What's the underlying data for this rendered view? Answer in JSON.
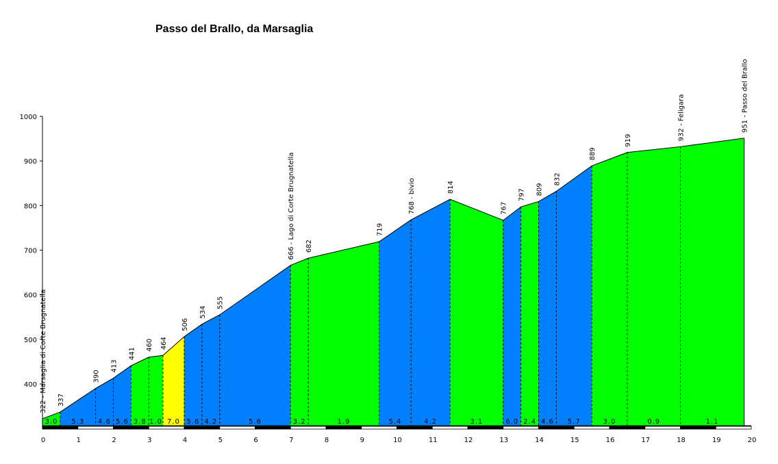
{
  "chart_data": {
    "type": "area",
    "title": "Passo del Brallo, da Marsaglia",
    "xlabel": "",
    "ylabel": "",
    "xlim": [
      0,
      20
    ],
    "ylim": [
      300,
      1000
    ],
    "x_ticks": [
      "0",
      "1",
      "2",
      "3",
      "4",
      "5",
      "6",
      "7",
      "8",
      "9",
      "10",
      "11",
      "12",
      "13",
      "14",
      "15",
      "16",
      "17",
      "18",
      "19",
      "20"
    ],
    "y_ticks": [
      "400",
      "500",
      "600",
      "700",
      "800",
      "900",
      "1000"
    ],
    "points": [
      {
        "x": 0,
        "y": 322,
        "label": "322 - Marsaglia di Corte Brugnatella"
      },
      {
        "x": 0.5,
        "y": 337,
        "label": "337"
      },
      {
        "x": 1.5,
        "y": 390,
        "label": "390"
      },
      {
        "x": 2.0,
        "y": 413,
        "label": "413"
      },
      {
        "x": 2.5,
        "y": 441,
        "label": "441"
      },
      {
        "x": 3.0,
        "y": 460,
        "label": "460"
      },
      {
        "x": 3.4,
        "y": 464,
        "label": "464"
      },
      {
        "x": 4.0,
        "y": 506,
        "label": "506"
      },
      {
        "x": 4.5,
        "y": 534,
        "label": "534"
      },
      {
        "x": 5.0,
        "y": 555,
        "label": "555"
      },
      {
        "x": 7.0,
        "y": 666,
        "label": "666 - Lago di Corte Brugnatella"
      },
      {
        "x": 7.5,
        "y": 682,
        "label": "682"
      },
      {
        "x": 9.5,
        "y": 719,
        "label": "719"
      },
      {
        "x": 10.4,
        "y": 768,
        "label": "768 - bivio"
      },
      {
        "x": 11.5,
        "y": 814,
        "label": "814"
      },
      {
        "x": 13.0,
        "y": 767,
        "label": "767"
      },
      {
        "x": 13.5,
        "y": 797,
        "label": "797"
      },
      {
        "x": 14.0,
        "y": 809,
        "label": "809"
      },
      {
        "x": 14.5,
        "y": 832,
        "label": "832"
      },
      {
        "x": 15.5,
        "y": 889,
        "label": "889"
      },
      {
        "x": 16.5,
        "y": 919,
        "label": "919"
      },
      {
        "x": 18.0,
        "y": 932,
        "label": "932 - Feligara"
      },
      {
        "x": 19.8,
        "y": 951,
        "label": "951 - Passo del Brallo"
      }
    ],
    "segments": [
      {
        "from": 0,
        "to": 0.5,
        "gradient": "3.0",
        "color": "#00ff00"
      },
      {
        "from": 0.5,
        "to": 1.5,
        "gradient": "5.3",
        "color": "#0080ff"
      },
      {
        "from": 1.5,
        "to": 2.0,
        "gradient": "4.6",
        "color": "#0080ff"
      },
      {
        "from": 2.0,
        "to": 2.5,
        "gradient": "5.6",
        "color": "#0080ff"
      },
      {
        "from": 2.5,
        "to": 3.0,
        "gradient": "3.8",
        "color": "#00ff00"
      },
      {
        "from": 3.0,
        "to": 3.4,
        "gradient": "1.0",
        "color": "#00ff00"
      },
      {
        "from": 3.4,
        "to": 4.0,
        "gradient": "7.0",
        "color": "#ffff00"
      },
      {
        "from": 4.0,
        "to": 4.5,
        "gradient": "5.6",
        "color": "#0080ff"
      },
      {
        "from": 4.5,
        "to": 5.0,
        "gradient": "4.2",
        "color": "#0080ff"
      },
      {
        "from": 5.0,
        "to": 7.0,
        "gradient": "5.6",
        "color": "#0080ff"
      },
      {
        "from": 7.0,
        "to": 7.5,
        "gradient": "3.2",
        "color": "#00ff00"
      },
      {
        "from": 7.5,
        "to": 9.5,
        "gradient": "1.9",
        "color": "#00ff00"
      },
      {
        "from": 9.5,
        "to": 10.4,
        "gradient": "5.4",
        "color": "#0080ff"
      },
      {
        "from": 10.4,
        "to": 11.5,
        "gradient": "4.2",
        "color": "#0080ff"
      },
      {
        "from": 11.5,
        "to": 13.0,
        "gradient": "3.1",
        "color": "#00ff00"
      },
      {
        "from": 13.0,
        "to": 13.5,
        "gradient": "6.0",
        "color": "#0080ff"
      },
      {
        "from": 13.5,
        "to": 14.0,
        "gradient": "2.4",
        "color": "#00ff00"
      },
      {
        "from": 14.0,
        "to": 14.5,
        "gradient": "4.6",
        "color": "#0080ff"
      },
      {
        "from": 14.5,
        "to": 15.5,
        "gradient": "5.7",
        "color": "#0080ff"
      },
      {
        "from": 15.5,
        "to": 16.5,
        "gradient": "3.0",
        "color": "#00ff00"
      },
      {
        "from": 16.5,
        "to": 18.0,
        "gradient": "0.9",
        "color": "#00ff00"
      },
      {
        "from": 18.0,
        "to": 19.8,
        "gradient": "1.1",
        "color": "#00ff00"
      }
    ],
    "grid": false,
    "legend": "none"
  }
}
